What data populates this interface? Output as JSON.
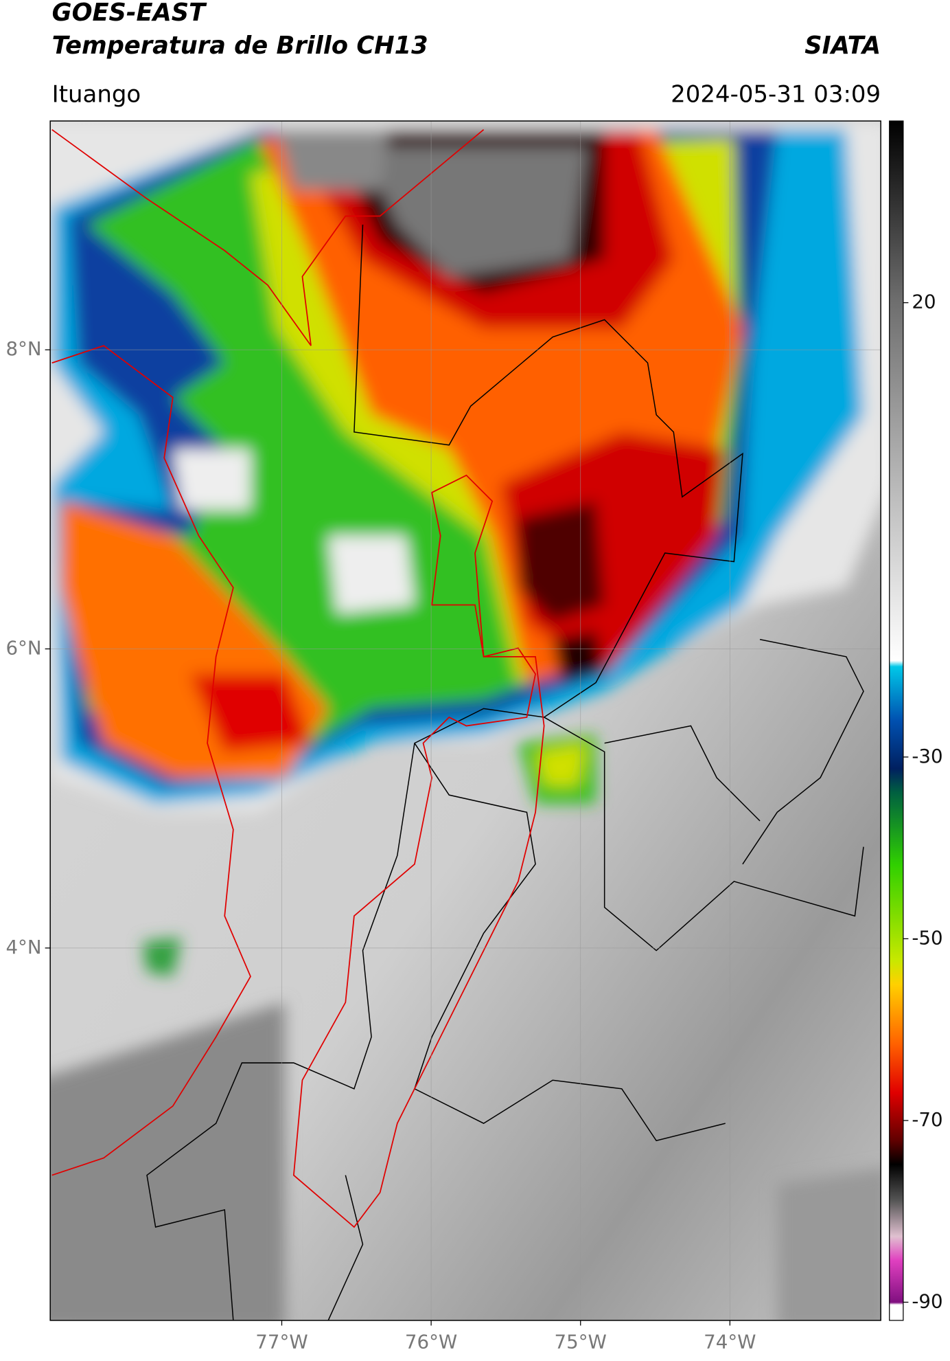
{
  "header": {
    "satellite": "GOES-EAST",
    "title": "Temperatura de Brillo CH13",
    "organization": "SIATA",
    "location": "Ituango",
    "datetime": "2024-05-31 03:09"
  },
  "map": {
    "xlim": [
      -78.55,
      -72.99
    ],
    "ylim": [
      1.51,
      9.53
    ],
    "xticks": [
      {
        "value": -77,
        "label": "77°W"
      },
      {
        "value": -76,
        "label": "76°W"
      },
      {
        "value": -75,
        "label": "75°W"
      },
      {
        "value": -74,
        "label": "74°W"
      }
    ],
    "yticks": [
      {
        "value": 8,
        "label": "8°N"
      },
      {
        "value": 6,
        "label": "6°N"
      },
      {
        "value": 4,
        "label": "4°N"
      }
    ],
    "grid": true
  },
  "colorbar": {
    "lim": [
      -92,
      40
    ],
    "ticks": [
      20,
      -30,
      -50,
      -70,
      -90
    ]
  }
}
